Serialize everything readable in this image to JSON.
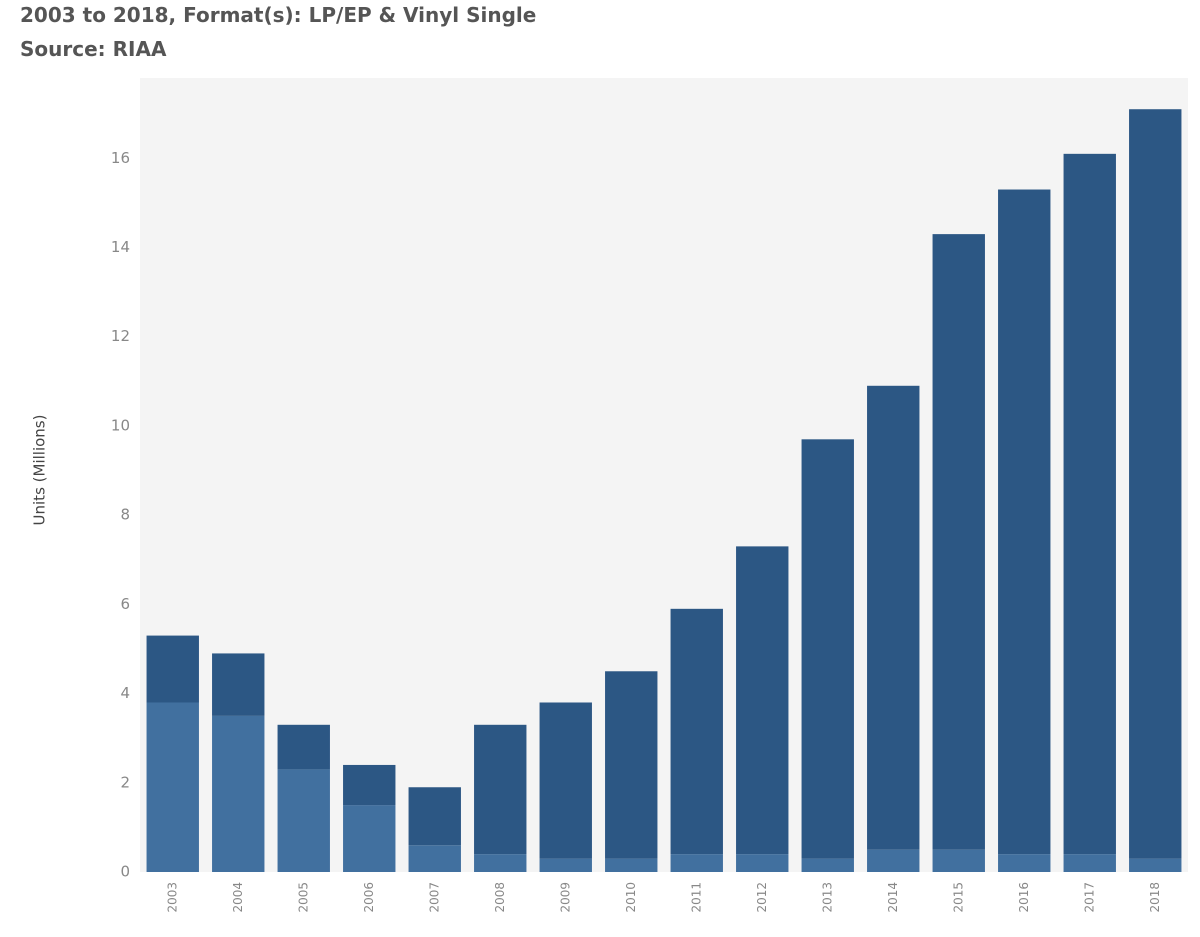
{
  "chart_data": {
    "type": "stacked_bar",
    "title": "2003 to 2018, Format(s): LP/EP & Vinyl Single",
    "subtitle": "Source: RIAA",
    "y_label": "Units (Millions)",
    "categories": [
      "2003",
      "2004",
      "2005",
      "2006",
      "2007",
      "2008",
      "2009",
      "2010",
      "2011",
      "2012",
      "2013",
      "2014",
      "2015",
      "2016",
      "2017",
      "2018"
    ],
    "series": [
      {
        "color": "#41709f",
        "values": [
          3.8,
          3.5,
          2.3,
          1.5,
          0.6,
          0.4,
          0.3,
          0.3,
          0.4,
          0.4,
          0.3,
          0.5,
          0.5,
          0.4,
          0.4,
          0.3
        ]
      },
      {
        "color": "#2c5784",
        "values": [
          1.5,
          1.4,
          1.0,
          0.9,
          1.3,
          2.9,
          3.5,
          4.2,
          5.5,
          6.9,
          9.4,
          10.4,
          13.8,
          14.9,
          15.7,
          16.8
        ]
      }
    ],
    "ylim": [
      0,
      17.8
    ],
    "yticks": [
      0,
      2,
      4,
      6,
      8,
      10,
      12,
      14,
      16
    ],
    "grid": false,
    "plot_background": "#f4f4f4"
  }
}
